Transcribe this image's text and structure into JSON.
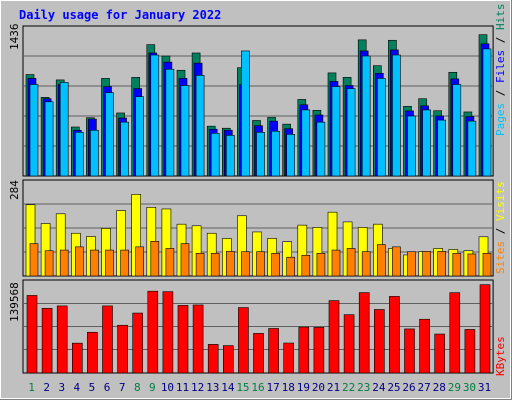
{
  "colors": {
    "background": "#c0c0c0",
    "hits": "#00805c",
    "files": "#0000ff",
    "pages": "#00c0ff",
    "visits": "#ff8000",
    "sites": "#ffff00",
    "kbytes": "#ff0000",
    "weekend_label": "#008040",
    "weekday_label": "#000080",
    "title": "#0000ff"
  },
  "chart_data": [
    {
      "type": "bar",
      "panel": "hits-files-pages",
      "title": "Daily usage for January 2022",
      "ymax_label": "1436",
      "ylim": [
        0,
        1436
      ],
      "grid": true,
      "categories": [
        "1",
        "2",
        "3",
        "4",
        "5",
        "6",
        "7",
        "8",
        "9",
        "10",
        "11",
        "12",
        "13",
        "14",
        "15",
        "16",
        "17",
        "18",
        "19",
        "20",
        "21",
        "22",
        "23",
        "24",
        "25",
        "26",
        "27",
        "28",
        "29",
        "30",
        "31"
      ],
      "series": [
        {
          "name": "Hits",
          "values": [
            998,
            774,
            945,
            482,
            573,
            960,
            620,
            970,
            1292,
            1180,
            1040,
            1210,
            490,
            470,
            1065,
            546,
            576,
            510,
            753,
            646,
            1014,
            970,
            1339,
            1085,
            1335,
            685,
            760,
            642,
            1020,
            630,
            1390
          ]
        },
        {
          "name": "Files",
          "values": [
            960,
            760,
            900,
            450,
            560,
            880,
            570,
            860,
            1210,
            1120,
            960,
            1110,
            460,
            450,
            900,
            495,
            540,
            465,
            700,
            600,
            930,
            890,
            1230,
            1010,
            1240,
            640,
            690,
            590,
            955,
            585,
            1300
          ]
        },
        {
          "name": "Pages",
          "values": [
            900,
            730,
            920,
            430,
            450,
            820,
            530,
            780,
            1190,
            1050,
            890,
            990,
            420,
            400,
            1230,
            430,
            440,
            410,
            650,
            530,
            880,
            860,
            1180,
            960,
            1190,
            590,
            650,
            550,
            900,
            540,
            1250
          ]
        }
      ],
      "right_label": [
        "Pages",
        " / ",
        "Files",
        " / ",
        "Hits"
      ]
    },
    {
      "type": "bar",
      "panel": "visits-sites",
      "ymax_label": "284",
      "ylim": [
        0,
        284
      ],
      "grid": true,
      "categories": [
        "1",
        "2",
        "3",
        "4",
        "5",
        "6",
        "7",
        "8",
        "9",
        "10",
        "11",
        "12",
        "13",
        "14",
        "15",
        "16",
        "17",
        "18",
        "19",
        "20",
        "21",
        "22",
        "23",
        "24",
        "25",
        "26",
        "27",
        "28",
        "29",
        "30",
        "31"
      ],
      "series": [
        {
          "name": "Visits",
          "values": [
            100,
            78,
            80,
            90,
            80,
            80,
            80,
            90,
            107,
            85,
            100,
            70,
            70,
            76,
            75,
            75,
            70,
            58,
            64,
            70,
            80,
            85,
            75,
            97,
            90,
            75,
            76,
            76,
            70,
            68,
            70
          ]
        },
        {
          "name": "Sites",
          "values": [
            220,
            162,
            192,
            132,
            122,
            147,
            202,
            252,
            212,
            207,
            160,
            155,
            132,
            116,
            186,
            136,
            116,
            106,
            157,
            150,
            197,
            167,
            150,
            160,
            85,
            65,
            75,
            85,
            82,
            78,
            121
          ]
        }
      ],
      "right_label": [
        "Sites",
        " / ",
        "Visits"
      ]
    },
    {
      "type": "bar",
      "panel": "kbytes",
      "ymax_label": "139568",
      "ylim": [
        0,
        139568
      ],
      "grid": true,
      "categories": [
        "1",
        "2",
        "3",
        "4",
        "5",
        "6",
        "7",
        "8",
        "9",
        "10",
        "11",
        "12",
        "13",
        "14",
        "15",
        "16",
        "17",
        "18",
        "19",
        "20",
        "21",
        "22",
        "23",
        "24",
        "25",
        "26",
        "27",
        "28",
        "29",
        "30",
        "31"
      ],
      "series": [
        {
          "name": "KBytes",
          "values": [
            121600,
            101400,
            105200,
            46800,
            63900,
            105200,
            74900,
            94000,
            128300,
            127600,
            106000,
            106700,
            44900,
            43000,
            102600,
            62100,
            69800,
            47000,
            72000,
            71500,
            113500,
            91500,
            126100,
            99600,
            120100,
            69100,
            84300,
            61100,
            126000,
            68300,
            138500
          ]
        }
      ],
      "right_label": [
        "KBytes"
      ]
    }
  ],
  "weekend_days": [
    1,
    8,
    9,
    15,
    16,
    22,
    23,
    29,
    30
  ]
}
